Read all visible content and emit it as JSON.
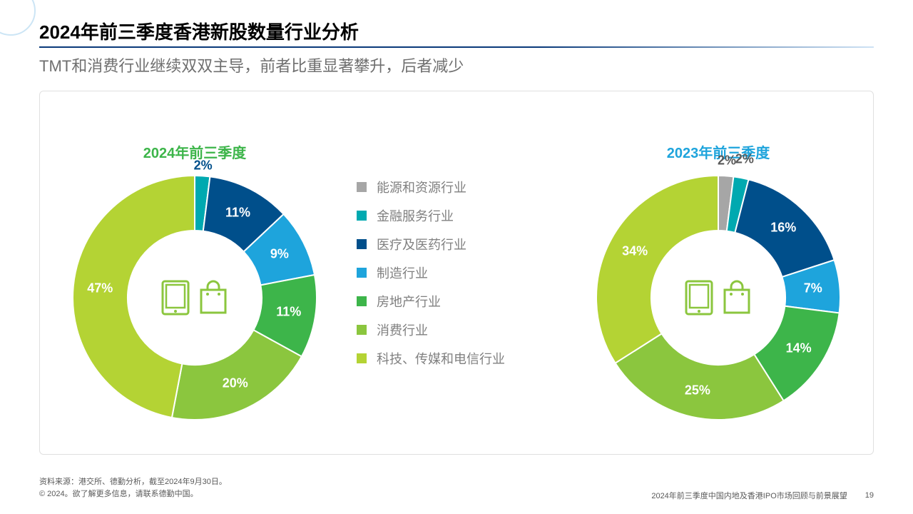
{
  "header": {
    "title": "2024年前三季度香港新股数量行业分析",
    "subtitle": "TMT和消费行业继续双双主导，前者比重显著攀升，后者减少"
  },
  "legend": {
    "label_color": "#808080",
    "items": [
      {
        "label": "能源和资源行业",
        "color": "#a6a6a6"
      },
      {
        "label": "金融服务行业",
        "color": "#00a9b0"
      },
      {
        "label": "医疗及医药行业",
        "color": "#004f8b"
      },
      {
        "label": "制造行业",
        "color": "#1ea4dc"
      },
      {
        "label": "房地产行业",
        "color": "#3db54a"
      },
      {
        "label": "消费行业",
        "color": "#8bc63e"
      },
      {
        "label": "科技、传媒和电信行业",
        "color": "#b4d334"
      }
    ]
  },
  "chart_2024": {
    "title": "2024年前三季度",
    "title_color": "#3db54a",
    "type": "donut",
    "inner_ratio": 0.55,
    "slices": [
      {
        "key": "financial",
        "value": 2,
        "label": "2%",
        "color": "#00a9b0",
        "label_color": "#004f8b",
        "label_r": 1.08
      },
      {
        "key": "healthcare",
        "value": 11,
        "label": "11%",
        "color": "#004f8b",
        "label_color": "#ffffff",
        "label_r": 0.78
      },
      {
        "key": "manufact",
        "value": 9,
        "label": "9%",
        "color": "#1ea4dc",
        "label_color": "#ffffff",
        "label_r": 0.78
      },
      {
        "key": "realestate",
        "value": 11,
        "label": "11%",
        "color": "#3db54a",
        "label_color": "#ffffff",
        "label_r": 0.78
      },
      {
        "key": "consumer",
        "value": 20,
        "label": "20%",
        "color": "#8bc63e",
        "label_color": "#ffffff",
        "label_r": 0.78
      },
      {
        "key": "tmt",
        "value": 47,
        "label": "47%",
        "color": "#b4d334",
        "label_color": "#ffffff",
        "label_r": 0.78
      }
    ]
  },
  "chart_2023": {
    "title": "2023年前三季度",
    "title_color": "#1ea4dc",
    "type": "donut",
    "inner_ratio": 0.55,
    "slices": [
      {
        "key": "energy",
        "value": 2,
        "label": "2%",
        "color": "#a6a6a6",
        "label_color": "#595959",
        "label_r": 1.12
      },
      {
        "key": "financial",
        "value": 2,
        "label": "2%",
        "color": "#00a9b0",
        "label_color": "#595959",
        "label_r": 1.15
      },
      {
        "key": "healthcare",
        "value": 16,
        "label": "16%",
        "color": "#004f8b",
        "label_color": "#ffffff",
        "label_r": 0.78
      },
      {
        "key": "manufact",
        "value": 7,
        "label": "7%",
        "color": "#1ea4dc",
        "label_color": "#ffffff",
        "label_r": 0.78
      },
      {
        "key": "realestate",
        "value": 14,
        "label": "14%",
        "color": "#3db54a",
        "label_color": "#ffffff",
        "label_r": 0.78
      },
      {
        "key": "consumer",
        "value": 25,
        "label": "25%",
        "color": "#8bc63e",
        "label_color": "#ffffff",
        "label_r": 0.78
      },
      {
        "key": "tmt",
        "value": 34,
        "label": "34%",
        "color": "#b4d334",
        "label_color": "#ffffff",
        "label_r": 0.78
      }
    ]
  },
  "center_icon_color": "#8bc63e",
  "footer": {
    "source": "资料来源：港交所、德勤分析，截至2024年9月30日。",
    "copyright": "© 2024。欲了解更多信息，请联系德勤中国。",
    "doc_title": "2024年前三季度中国内地及香港IPO市场回顾与前景展望",
    "page": "19"
  }
}
